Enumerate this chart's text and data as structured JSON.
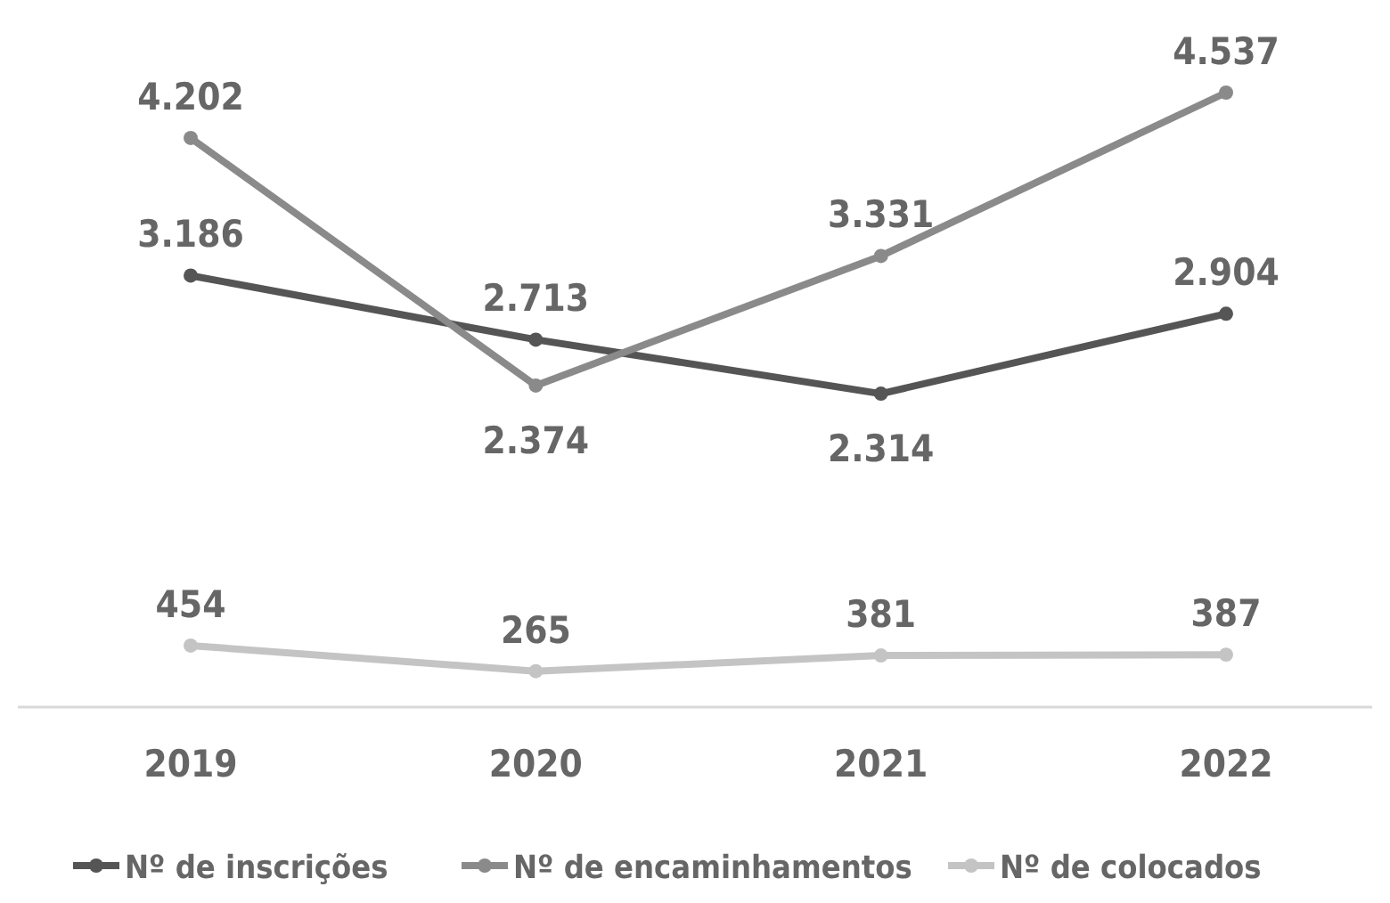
{
  "chart_data": {
    "type": "line",
    "categories": [
      "2019",
      "2020",
      "2021",
      "2022"
    ],
    "series": [
      {
        "name": "Nº de inscrições",
        "color": "#555555",
        "values": [
          3186,
          2713,
          2314,
          2904
        ],
        "value_labels": [
          "3.186",
          "2.713",
          "2.314",
          "2.904"
        ]
      },
      {
        "name": "Nº de encaminhamentos",
        "color": "#8a8a8a",
        "values": [
          4202,
          2374,
          3331,
          4537
        ],
        "value_labels": [
          "4.202",
          "2.374",
          "3.331",
          "4.537"
        ]
      },
      {
        "name": "Nº de colocados",
        "color": "#c4c4c4",
        "values": [
          454,
          265,
          381,
          387
        ],
        "value_labels": [
          "454",
          "265",
          "381",
          "387"
        ]
      }
    ],
    "marker": "circle",
    "legend": "bottom"
  }
}
